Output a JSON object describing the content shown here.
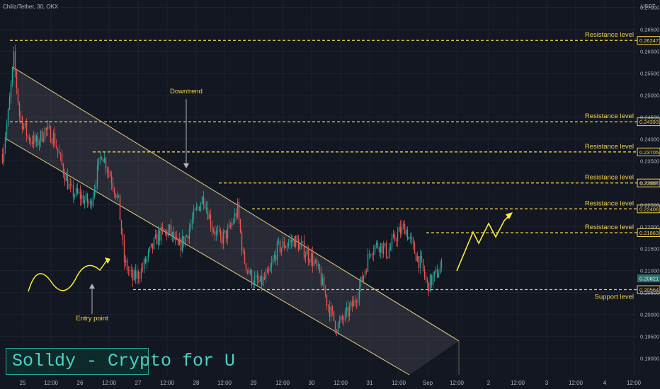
{
  "header": {
    "symbol": "Chiliz/Tether, 30, OKX"
  },
  "axis": {
    "currency": "USDT"
  },
  "watermark": "Solldy - Crypto for U",
  "colors": {
    "background": "#131722",
    "up": "#26a69a",
    "down": "#ef5350",
    "annotation": "#f0d24a",
    "arrow": "#ffeb3b",
    "channel_line": "#e9d27a",
    "grid": "#1e222d",
    "axis_text": "#b2b5be"
  },
  "chart_data": {
    "type": "candlestick",
    "title": "Chiliz/Tether, 30, OKX",
    "y_axis": {
      "unit": "USDT",
      "min": 0.1865,
      "max": 0.2745,
      "ticks": [
        "0.19000",
        "0.19500",
        "0.20000",
        "0.20500",
        "0.21000",
        "0.21500",
        "0.22000",
        "0.22500",
        "0.23000",
        "0.23500",
        "0.24000",
        "0.24500",
        "0.25000",
        "0.25500",
        "0.26000",
        "0.26500",
        "0.27000"
      ]
    },
    "x_axis": {
      "labels": [
        "25",
        "12:00",
        "26",
        "12:00",
        "27",
        "12:00",
        "28",
        "12:00",
        "29",
        "12:00",
        "30",
        "12:00",
        "31",
        "12:00",
        "Sep",
        "12:00",
        "2",
        "12:00",
        "3",
        "12:00",
        "4",
        "12:00"
      ]
    },
    "price_path": [
      {
        "x": 0,
        "y": 0.2365
      },
      {
        "x": 4,
        "y": 0.2455
      },
      {
        "x": 8,
        "y": 0.2585
      },
      {
        "x": 12,
        "y": 0.2455
      },
      {
        "x": 18,
        "y": 0.2405
      },
      {
        "x": 24,
        "y": 0.239
      },
      {
        "x": 30,
        "y": 0.242
      },
      {
        "x": 36,
        "y": 0.2405
      },
      {
        "x": 42,
        "y": 0.234
      },
      {
        "x": 48,
        "y": 0.228
      },
      {
        "x": 55,
        "y": 0.227
      },
      {
        "x": 62,
        "y": 0.225
      },
      {
        "x": 70,
        "y": 0.237
      },
      {
        "x": 78,
        "y": 0.23
      },
      {
        "x": 82,
        "y": 0.2255
      },
      {
        "x": 86,
        "y": 0.212
      },
      {
        "x": 92,
        "y": 0.208
      },
      {
        "x": 98,
        "y": 0.21
      },
      {
        "x": 104,
        "y": 0.214
      },
      {
        "x": 110,
        "y": 0.218
      },
      {
        "x": 118,
        "y": 0.219
      },
      {
        "x": 124,
        "y": 0.215
      },
      {
        "x": 130,
        "y": 0.218
      },
      {
        "x": 136,
        "y": 0.223
      },
      {
        "x": 142,
        "y": 0.227
      },
      {
        "x": 148,
        "y": 0.22
      },
      {
        "x": 154,
        "y": 0.217
      },
      {
        "x": 160,
        "y": 0.219
      },
      {
        "x": 166,
        "y": 0.224
      },
      {
        "x": 170,
        "y": 0.213
      },
      {
        "x": 176,
        "y": 0.208
      },
      {
        "x": 182,
        "y": 0.207
      },
      {
        "x": 188,
        "y": 0.209
      },
      {
        "x": 194,
        "y": 0.215
      },
      {
        "x": 200,
        "y": 0.216
      },
      {
        "x": 206,
        "y": 0.217
      },
      {
        "x": 212,
        "y": 0.215
      },
      {
        "x": 218,
        "y": 0.213
      },
      {
        "x": 224,
        "y": 0.209
      },
      {
        "x": 230,
        "y": 0.202
      },
      {
        "x": 236,
        "y": 0.197
      },
      {
        "x": 242,
        "y": 0.1995
      },
      {
        "x": 248,
        "y": 0.2025
      },
      {
        "x": 254,
        "y": 0.208
      },
      {
        "x": 260,
        "y": 0.215
      },
      {
        "x": 266,
        "y": 0.216
      },
      {
        "x": 272,
        "y": 0.214
      },
      {
        "x": 278,
        "y": 0.218
      },
      {
        "x": 284,
        "y": 0.22
      },
      {
        "x": 290,
        "y": 0.215
      },
      {
        "x": 296,
        "y": 0.211
      },
      {
        "x": 300,
        "y": 0.2065
      },
      {
        "x": 306,
        "y": 0.209
      },
      {
        "x": 310,
        "y": 0.211
      }
    ],
    "levels": [
      {
        "label": "Resistance level",
        "price": "0.26247"
      },
      {
        "label": "Resistance level",
        "price": "0.24393"
      },
      {
        "label": "Resistance level",
        "price": "0.23705"
      },
      {
        "label": "Resistance level",
        "price": "0.22997"
      },
      {
        "label": "Resistance level",
        "price": "0.22406"
      },
      {
        "label": "Resistance level",
        "price": "0.21863"
      },
      {
        "label": "Support level",
        "price": "0.20564"
      }
    ],
    "current_price": "0.20821",
    "annotations": [
      {
        "text": "Downtrend"
      },
      {
        "text": "Entry point"
      }
    ]
  }
}
